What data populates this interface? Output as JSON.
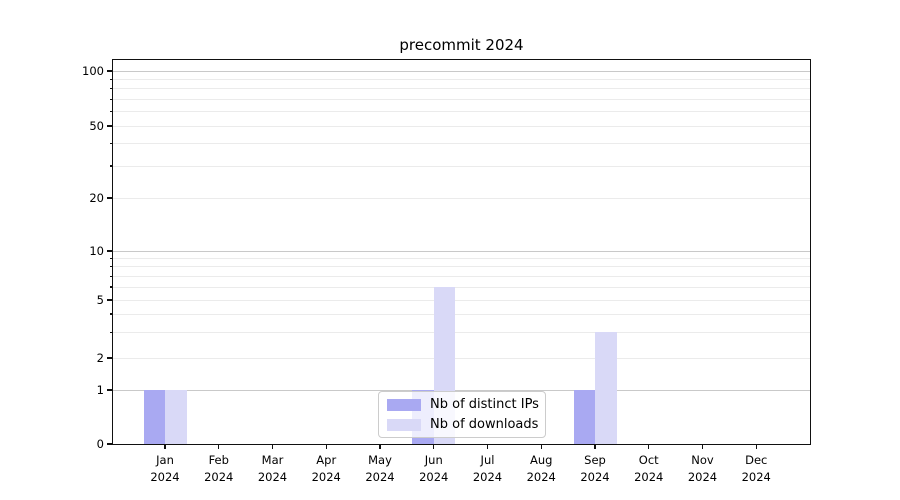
{
  "chart_data": {
    "type": "bar",
    "title": "precommit 2024",
    "categories": [
      "Jan 2024",
      "Feb 2024",
      "Mar 2024",
      "Apr 2024",
      "May 2024",
      "Jun 2024",
      "Jul 2024",
      "Aug 2024",
      "Sep 2024",
      "Oct 2024",
      "Nov 2024",
      "Dec 2024"
    ],
    "series": [
      {
        "name": "Nb of distinct IPs",
        "color": "#a9a9f2",
        "values": [
          1,
          0,
          0,
          0,
          0,
          1,
          0,
          0,
          1,
          0,
          0,
          0
        ]
      },
      {
        "name": "Nb of downloads",
        "color": "#d9d9f7",
        "values": [
          1,
          0,
          0,
          0,
          0,
          6,
          0,
          0,
          3,
          0,
          0,
          0
        ]
      }
    ],
    "yscale": "symlog",
    "ylim": [
      0,
      120
    ],
    "y_labeled_ticks": [
      0,
      1,
      2,
      5,
      10,
      20,
      50,
      100
    ],
    "y_decade_gridlines": [
      1,
      10,
      100
    ],
    "y_minor_gridlines": [
      2,
      3,
      4,
      5,
      6,
      7,
      8,
      9,
      20,
      30,
      40,
      50,
      60,
      70,
      80,
      90
    ],
    "grid": "both",
    "legend_position": "lower-center-inside",
    "colors": {
      "grid_decade": "#c9c9c9",
      "grid_minor": "#ebebeb",
      "spine": "#111111",
      "text": "#000000",
      "background": "#ffffff"
    }
  }
}
